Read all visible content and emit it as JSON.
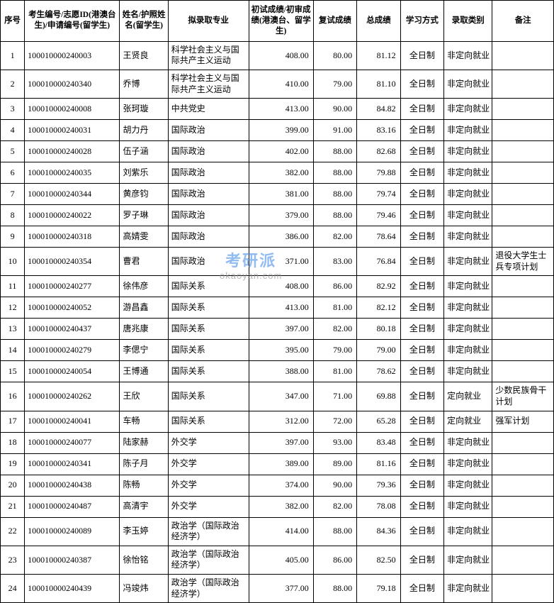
{
  "headers": {
    "seq": "序号",
    "id": "考生编号/志愿ID(港澳台生)/申请编号(留学生)",
    "name": "姓名/护照姓名(留学生)",
    "major": "拟录取专业",
    "score1": "初试成绩/初审成绩(港澳台、留学生)",
    "score2": "复试成绩",
    "score3": "总成绩",
    "mode": "学习方式",
    "type": "录取类别",
    "note": "备注"
  },
  "rows": [
    {
      "seq": "1",
      "id": "100010000240003",
      "name": "王贤良",
      "major": "科学社会主义与国际共产主义运动",
      "s1": "408.00",
      "s2": "80.00",
      "s3": "81.12",
      "mode": "全日制",
      "type": "非定向就业",
      "note": ""
    },
    {
      "seq": "2",
      "id": "100010000240340",
      "name": "乔博",
      "major": "科学社会主义与国际共产主义运动",
      "s1": "410.00",
      "s2": "79.00",
      "s3": "81.10",
      "mode": "全日制",
      "type": "非定向就业",
      "note": ""
    },
    {
      "seq": "3",
      "id": "100010000240008",
      "name": "张珂璇",
      "major": "中共党史",
      "s1": "413.00",
      "s2": "90.00",
      "s3": "84.82",
      "mode": "全日制",
      "type": "非定向就业",
      "note": ""
    },
    {
      "seq": "4",
      "id": "100010000240031",
      "name": "胡力丹",
      "major": "国际政治",
      "s1": "399.00",
      "s2": "91.00",
      "s3": "83.16",
      "mode": "全日制",
      "type": "非定向就业",
      "note": ""
    },
    {
      "seq": "5",
      "id": "100010000240028",
      "name": "伍子涵",
      "major": "国际政治",
      "s1": "402.00",
      "s2": "88.00",
      "s3": "82.68",
      "mode": "全日制",
      "type": "非定向就业",
      "note": ""
    },
    {
      "seq": "6",
      "id": "100010000240035",
      "name": "刘紫乐",
      "major": "国际政治",
      "s1": "382.00",
      "s2": "88.00",
      "s3": "79.88",
      "mode": "全日制",
      "type": "非定向就业",
      "note": ""
    },
    {
      "seq": "7",
      "id": "100010000240344",
      "name": "黄彦钧",
      "major": "国际政治",
      "s1": "381.00",
      "s2": "88.00",
      "s3": "79.74",
      "mode": "全日制",
      "type": "非定向就业",
      "note": ""
    },
    {
      "seq": "8",
      "id": "100010000240022",
      "name": "罗子琳",
      "major": "国际政治",
      "s1": "379.00",
      "s2": "88.00",
      "s3": "79.46",
      "mode": "全日制",
      "type": "非定向就业",
      "note": ""
    },
    {
      "seq": "9",
      "id": "100010000240318",
      "name": "高婧雯",
      "major": "国际政治",
      "s1": "386.00",
      "s2": "82.00",
      "s3": "78.64",
      "mode": "全日制",
      "type": "非定向就业",
      "note": ""
    },
    {
      "seq": "10",
      "id": "100010000240354",
      "name": "曹君",
      "major": "国际政治",
      "s1": "371.00",
      "s2": "83.00",
      "s3": "76.84",
      "mode": "全日制",
      "type": "非定向就业",
      "note": "退役大学生士兵专项计划"
    },
    {
      "seq": "11",
      "id": "100010000240277",
      "name": "徐伟彦",
      "major": "国际关系",
      "s1": "408.00",
      "s2": "86.00",
      "s3": "82.92",
      "mode": "全日制",
      "type": "非定向就业",
      "note": ""
    },
    {
      "seq": "12",
      "id": "100010000240052",
      "name": "游昌鑫",
      "major": "国际关系",
      "s1": "413.00",
      "s2": "81.00",
      "s3": "82.12",
      "mode": "全日制",
      "type": "非定向就业",
      "note": ""
    },
    {
      "seq": "13",
      "id": "100010000240437",
      "name": "唐兆康",
      "major": "国际关系",
      "s1": "397.00",
      "s2": "82.00",
      "s3": "80.18",
      "mode": "全日制",
      "type": "非定向就业",
      "note": ""
    },
    {
      "seq": "14",
      "id": "100010000240279",
      "name": "李偲宁",
      "major": "国际关系",
      "s1": "395.00",
      "s2": "79.00",
      "s3": "79.00",
      "mode": "全日制",
      "type": "非定向就业",
      "note": ""
    },
    {
      "seq": "15",
      "id": "100010000240054",
      "name": "王博通",
      "major": "国际关系",
      "s1": "388.00",
      "s2": "81.00",
      "s3": "78.62",
      "mode": "全日制",
      "type": "非定向就业",
      "note": ""
    },
    {
      "seq": "16",
      "id": "100010000240262",
      "name": "王欣",
      "major": "国际关系",
      "s1": "347.00",
      "s2": "71.00",
      "s3": "69.88",
      "mode": "全日制",
      "type": "定向就业",
      "note": "少数民族骨干计划"
    },
    {
      "seq": "17",
      "id": "100010000240041",
      "name": "车畅",
      "major": "国际关系",
      "s1": "312.00",
      "s2": "72.00",
      "s3": "65.28",
      "mode": "全日制",
      "type": "定向就业",
      "note": "强军计划"
    },
    {
      "seq": "18",
      "id": "100010000240077",
      "name": "陆家赫",
      "major": "外交学",
      "s1": "397.00",
      "s2": "93.00",
      "s3": "83.48",
      "mode": "全日制",
      "type": "非定向就业",
      "note": ""
    },
    {
      "seq": "19",
      "id": "100010000240341",
      "name": "陈子月",
      "major": "外交学",
      "s1": "389.00",
      "s2": "89.00",
      "s3": "81.16",
      "mode": "全日制",
      "type": "非定向就业",
      "note": ""
    },
    {
      "seq": "20",
      "id": "100010000240438",
      "name": "陈畅",
      "major": "外交学",
      "s1": "374.00",
      "s2": "90.00",
      "s3": "79.36",
      "mode": "全日制",
      "type": "非定向就业",
      "note": ""
    },
    {
      "seq": "21",
      "id": "100010000240487",
      "name": "高清宇",
      "major": "外交学",
      "s1": "382.00",
      "s2": "82.00",
      "s3": "78.08",
      "mode": "全日制",
      "type": "非定向就业",
      "note": ""
    },
    {
      "seq": "22",
      "id": "100010000240089",
      "name": "李玉婷",
      "major": "政治学（国际政治经济学）",
      "s1": "414.00",
      "s2": "88.00",
      "s3": "84.36",
      "mode": "全日制",
      "type": "非定向就业",
      "note": ""
    },
    {
      "seq": "23",
      "id": "100010000240387",
      "name": "徐怡铭",
      "major": "政治学（国际政治经济学）",
      "s1": "405.00",
      "s2": "86.00",
      "s3": "82.50",
      "mode": "全日制",
      "type": "非定向就业",
      "note": ""
    },
    {
      "seq": "24",
      "id": "100010000240439",
      "name": "冯竣炜",
      "major": "政治学（国际政治经济学）",
      "s1": "377.00",
      "s2": "88.00",
      "s3": "79.18",
      "mode": "全日制",
      "type": "非定向就业",
      "note": ""
    }
  ],
  "watermark": {
    "top": "考研派",
    "bottom": "okaoyan.com"
  }
}
